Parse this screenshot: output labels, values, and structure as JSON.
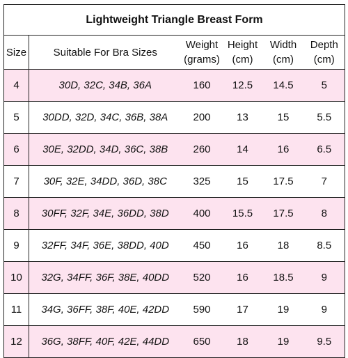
{
  "table": {
    "title": "Lightweight Triangle Breast Form",
    "headers": {
      "size": "Size",
      "bras": "Suitable For Bra Sizes",
      "weight_1": "Weight",
      "weight_2": "(grams)",
      "height_1": "Height",
      "height_2": "(cm)",
      "width_1": "Width",
      "width_2": "(cm)",
      "depth_1": "Depth",
      "depth_2": "(cm)"
    },
    "row_highlight_color": "#fde3ef",
    "rows": [
      {
        "size": "4",
        "bras": "30D, 32C, 34B, 36A",
        "weight": "160",
        "height": "12.5",
        "width": "14.5",
        "depth": "5"
      },
      {
        "size": "5",
        "bras": "30DD, 32D, 34C, 36B, 38A",
        "weight": "200",
        "height": "13",
        "width": "15",
        "depth": "5.5"
      },
      {
        "size": "6",
        "bras": "30E, 32DD, 34D, 36C, 38B",
        "weight": "260",
        "height": "14",
        "width": "16",
        "depth": "6.5"
      },
      {
        "size": "7",
        "bras": "30F, 32E, 34DD, 36D, 38C",
        "weight": "325",
        "height": "15",
        "width": "17.5",
        "depth": "7"
      },
      {
        "size": "8",
        "bras": "30FF, 32F, 34E, 36DD, 38D",
        "weight": "400",
        "height": "15.5",
        "width": "17.5",
        "depth": "8"
      },
      {
        "size": "9",
        "bras": "32FF, 34F, 36E, 38DD, 40D",
        "weight": "450",
        "height": "16",
        "width": "18",
        "depth": "8.5"
      },
      {
        "size": "10",
        "bras": "32G, 34FF, 36F, 38E, 40DD",
        "weight": "520",
        "height": "16",
        "width": "18.5",
        "depth": "9"
      },
      {
        "size": "11",
        "bras": "34G, 36FF, 38F, 40E, 42DD",
        "weight": "590",
        "height": "17",
        "width": "19",
        "depth": "9"
      },
      {
        "size": "12",
        "bras": "36G, 38FF, 40F, 42E, 44DD",
        "weight": "650",
        "height": "18",
        "width": "19",
        "depth": "9.5"
      }
    ]
  }
}
